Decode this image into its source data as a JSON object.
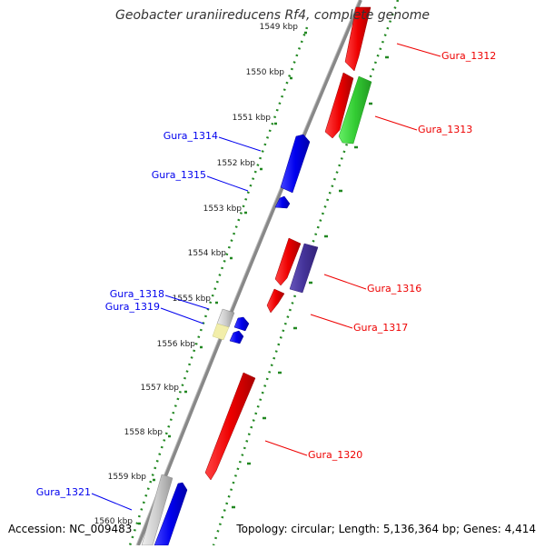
{
  "title": "Geobacter uraniireducens Rf4, complete genome",
  "footer": {
    "accession": "Accession: NC_009483",
    "summary": "Topology: circular; Length: 5,136,364 bp; Genes: 4,414"
  },
  "ruler": {
    "unit_suffix": " kbp",
    "ticks": [
      "1549 kbp",
      "1550 kbp",
      "1551 kbp",
      "1552 kbp",
      "1553 kbp",
      "1554 kbp",
      "1555 kbp",
      "1556 kbp",
      "1557 kbp",
      "1558 kbp",
      "1559 kbp",
      "1560 kbp"
    ]
  },
  "colors": {
    "forward_gene": "#ee0000",
    "reverse_gene": "#0000ee",
    "other_gene": "#33cc33",
    "pseudo_gene": "#443399",
    "rna": "#cccccc",
    "misc": "#f2eeaa",
    "backbone": "#888888",
    "tick_dots": "#228822"
  },
  "genes_right": [
    {
      "label": "Gura_1312"
    },
    {
      "label": "Gura_1313"
    },
    {
      "label": "Gura_1316"
    },
    {
      "label": "Gura_1317"
    },
    {
      "label": "Gura_1320"
    }
  ],
  "genes_left": [
    {
      "label": "Gura_1314"
    },
    {
      "label": "Gura_1315"
    },
    {
      "label": "Gura_1318"
    },
    {
      "label": "Gura_1319"
    },
    {
      "label": "Gura_1321"
    }
  ]
}
